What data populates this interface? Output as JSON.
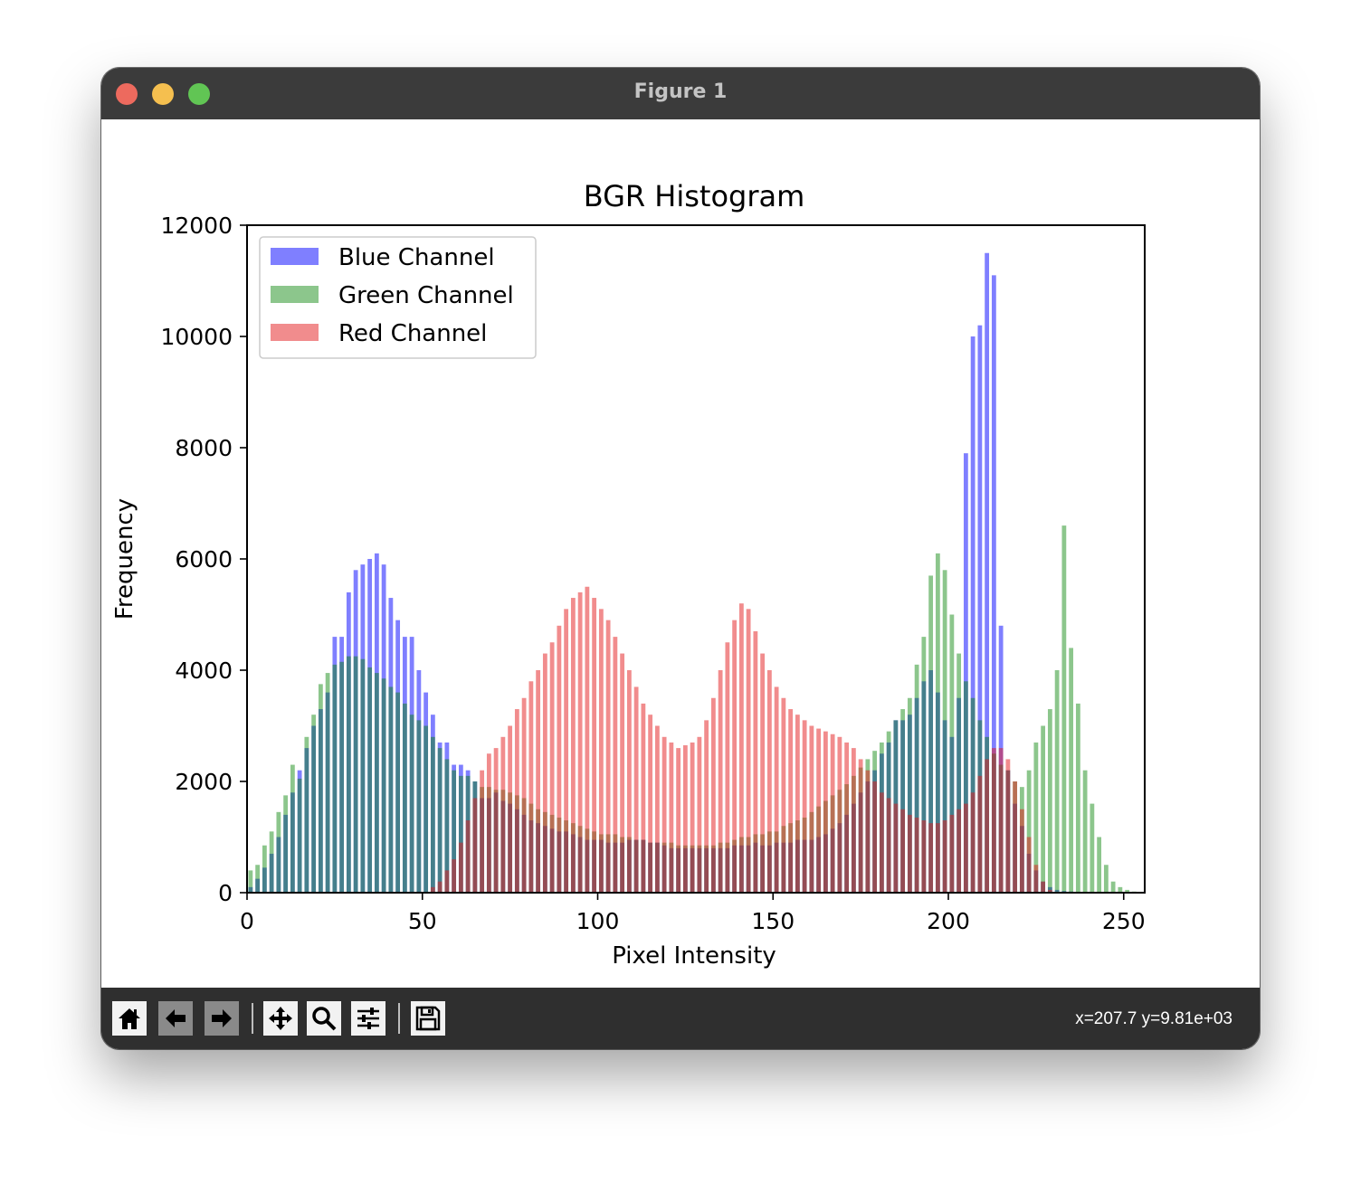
{
  "window": {
    "title": "Figure 1"
  },
  "toolbar": {
    "buttons": [
      {
        "name": "home-button",
        "icon": "home-icon"
      },
      {
        "name": "back-button",
        "icon": "arrow-left-icon"
      },
      {
        "name": "forward-button",
        "icon": "arrow-right-icon"
      },
      {
        "name": "pan-button",
        "icon": "move-icon"
      },
      {
        "name": "zoom-button",
        "icon": "magnifier-icon"
      },
      {
        "name": "configure-subplots-button",
        "icon": "sliders-icon"
      },
      {
        "name": "save-button",
        "icon": "floppy-disk-icon"
      }
    ],
    "coords": "x=207.7 y=9.81e+03"
  },
  "chart_data": {
    "type": "bar",
    "title": "BGR Histogram",
    "xlabel": "Pixel Intensity",
    "ylabel": "Frequency",
    "xlim": [
      0,
      256
    ],
    "ylim": [
      0,
      12000
    ],
    "xticks": [
      0,
      50,
      100,
      150,
      200,
      250
    ],
    "yticks": [
      0,
      2000,
      4000,
      6000,
      8000,
      10000,
      12000
    ],
    "legend_position": "upper-left",
    "grid": false,
    "x": [
      0,
      2,
      4,
      6,
      8,
      10,
      12,
      14,
      16,
      18,
      20,
      22,
      24,
      26,
      28,
      30,
      32,
      34,
      36,
      38,
      40,
      42,
      44,
      46,
      48,
      50,
      52,
      54,
      56,
      58,
      60,
      62,
      64,
      66,
      68,
      70,
      72,
      74,
      76,
      78,
      80,
      82,
      84,
      86,
      88,
      90,
      92,
      94,
      96,
      98,
      100,
      102,
      104,
      106,
      108,
      110,
      112,
      114,
      116,
      118,
      120,
      122,
      124,
      126,
      128,
      130,
      132,
      134,
      136,
      138,
      140,
      142,
      144,
      146,
      148,
      150,
      152,
      154,
      156,
      158,
      160,
      162,
      164,
      166,
      168,
      170,
      172,
      174,
      176,
      178,
      180,
      182,
      184,
      186,
      188,
      190,
      192,
      194,
      196,
      198,
      200,
      202,
      204,
      206,
      208,
      210,
      212,
      214,
      216,
      218,
      220,
      222,
      224,
      226,
      228,
      230,
      232,
      234,
      236,
      238,
      240,
      242,
      244,
      246,
      248,
      250,
      252,
      254
    ],
    "series": [
      {
        "name": "Blue Channel",
        "color": "#0000ff",
        "alpha": 0.5,
        "values": [
          100,
          250,
          450,
          700,
          1000,
          1400,
          1800,
          2200,
          2600,
          3000,
          3300,
          3600,
          4600,
          4600,
          5400,
          5800,
          5900,
          6000,
          6100,
          5900,
          5300,
          4900,
          4600,
          4600,
          4000,
          3600,
          3200,
          2700,
          2700,
          2300,
          2300,
          2200,
          2000,
          1700,
          1700,
          1800,
          1650,
          1600,
          1500,
          1400,
          1300,
          1250,
          1200,
          1150,
          1100,
          1100,
          1050,
          1000,
          950,
          950,
          950,
          900,
          900,
          900,
          950,
          950,
          950,
          900,
          900,
          850,
          800,
          800,
          800,
          800,
          800,
          800,
          800,
          800,
          800,
          850,
          850,
          850,
          900,
          850,
          850,
          900,
          900,
          900,
          950,
          950,
          950,
          1000,
          1050,
          1150,
          1250,
          1400,
          1600,
          1800,
          2000,
          2200,
          2500,
          2700,
          3100,
          3100,
          3200,
          3500,
          3800,
          4000,
          3600,
          3100,
          2800,
          3500,
          7900,
          10000,
          10200,
          11500,
          11100,
          4800,
          2200,
          1600,
          1200,
          700,
          400,
          200,
          100,
          50,
          30,
          20,
          10,
          0,
          0,
          0,
          0,
          0,
          0,
          0,
          0,
          0
        ]
      },
      {
        "name": "Green Channel",
        "color": "#008000",
        "alpha": 0.45,
        "values": [
          400,
          500,
          850,
          1100,
          1450,
          1750,
          2300,
          2050,
          2800,
          3200,
          3750,
          3950,
          4100,
          4150,
          4250,
          4250,
          4200,
          4050,
          3950,
          3850,
          3700,
          3600,
          3400,
          3200,
          3100,
          3000,
          2800,
          2600,
          2400,
          2200,
          2100,
          2100,
          2000,
          1900,
          1900,
          1850,
          1850,
          1800,
          1750,
          1700,
          1600,
          1500,
          1450,
          1400,
          1350,
          1300,
          1250,
          1200,
          1150,
          1100,
          1050,
          1050,
          1050,
          1000,
          1000,
          950,
          950,
          900,
          900,
          900,
          900,
          850,
          850,
          850,
          850,
          850,
          850,
          900,
          900,
          950,
          1000,
          1000,
          1050,
          1050,
          1100,
          1100,
          1200,
          1250,
          1300,
          1350,
          1450,
          1550,
          1650,
          1750,
          1850,
          1950,
          2100,
          2250,
          2400,
          2550,
          2700,
          2900,
          3100,
          3300,
          3500,
          4100,
          4600,
          5700,
          6100,
          5800,
          5000,
          4300,
          3800,
          3500,
          3100,
          2800,
          2500,
          2300,
          2200,
          2000,
          1900,
          2200,
          2700,
          3000,
          3300,
          4000,
          6600,
          4400,
          3400,
          2200,
          1600,
          1000,
          500,
          200,
          100,
          50,
          20,
          0
        ]
      },
      {
        "name": "Red Channel",
        "color": "#e31a1c",
        "alpha": 0.5,
        "values": [
          0,
          0,
          0,
          0,
          0,
          0,
          0,
          0,
          0,
          0,
          0,
          0,
          0,
          0,
          0,
          0,
          0,
          0,
          0,
          0,
          0,
          0,
          0,
          0,
          0,
          0,
          100,
          200,
          400,
          600,
          900,
          1300,
          1700,
          2200,
          2500,
          2600,
          2800,
          3000,
          3300,
          3500,
          3800,
          4000,
          4300,
          4500,
          4800,
          5100,
          5300,
          5400,
          5500,
          5300,
          5100,
          4900,
          4600,
          4300,
          4000,
          3700,
          3400,
          3200,
          3000,
          2800,
          2700,
          2600,
          2650,
          2700,
          2800,
          3100,
          3500,
          4000,
          4500,
          4900,
          5200,
          5100,
          4700,
          4300,
          4000,
          3700,
          3500,
          3300,
          3200,
          3100,
          3000,
          2950,
          2900,
          2850,
          2800,
          2700,
          2600,
          2400,
          2200,
          2000,
          1800,
          1700,
          1600,
          1500,
          1400,
          1350,
          1300,
          1250,
          1250,
          1300,
          1400,
          1500,
          1600,
          1800,
          2100,
          2400,
          2600,
          2600,
          2400,
          2000,
          1500,
          1000,
          500,
          200,
          50,
          0,
          0,
          0,
          0,
          0,
          0,
          0,
          0,
          0,
          0,
          0,
          0,
          0
        ]
      }
    ]
  }
}
